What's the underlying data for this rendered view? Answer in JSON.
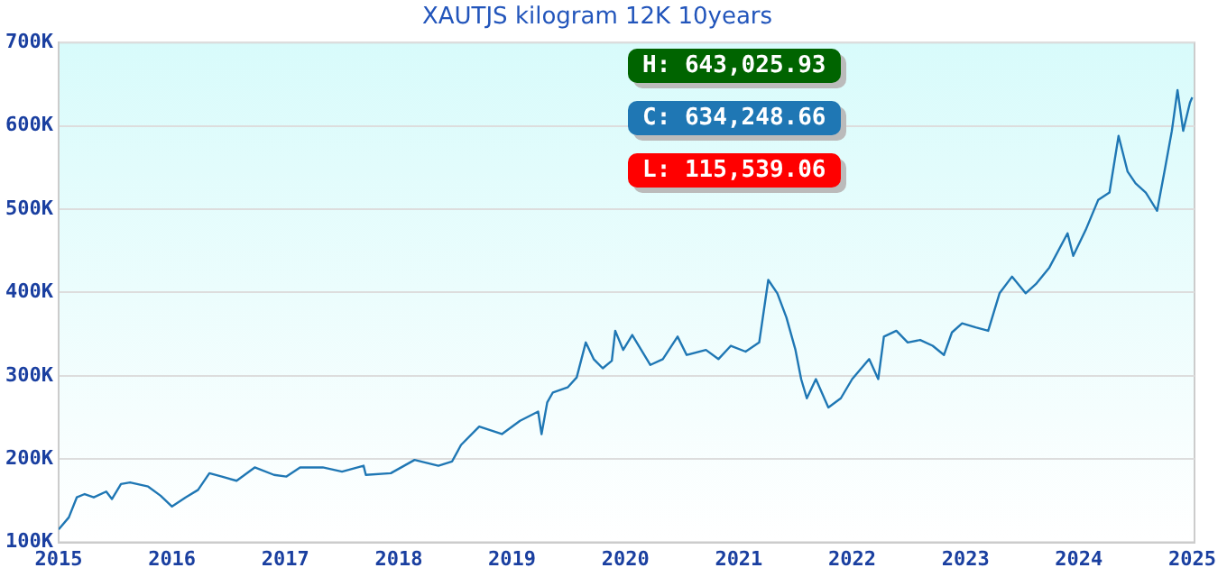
{
  "chart_data": {
    "type": "line",
    "title": "XAUTJS kilogram 12K 10years",
    "x": [
      2015.0,
      2015.09,
      2015.16,
      2015.23,
      2015.31,
      2015.42,
      2015.47,
      2015.55,
      2015.63,
      2015.79,
      2015.9,
      2016.0,
      2016.12,
      2016.23,
      2016.33,
      2016.44,
      2016.57,
      2016.73,
      2016.9,
      2017.01,
      2017.13,
      2017.33,
      2017.5,
      2017.69,
      2017.71,
      2017.93,
      2018.14,
      2018.35,
      2018.47,
      2018.55,
      2018.71,
      2018.91,
      2019.07,
      2019.23,
      2019.26,
      2019.31,
      2019.36,
      2019.49,
      2019.57,
      2019.65,
      2019.72,
      2019.8,
      2019.88,
      2019.91,
      2019.98,
      2020.06,
      2020.22,
      2020.33,
      2020.46,
      2020.54,
      2020.71,
      2020.82,
      2020.93,
      2021.06,
      2021.18,
      2021.26,
      2021.34,
      2021.42,
      2021.5,
      2021.55,
      2021.6,
      2021.68,
      2021.79,
      2021.9,
      2022.0,
      2022.15,
      2022.23,
      2022.28,
      2022.39,
      2022.49,
      2022.6,
      2022.71,
      2022.81,
      2022.88,
      2022.97,
      2023.09,
      2023.2,
      2023.3,
      2023.41,
      2023.53,
      2023.62,
      2023.74,
      2023.9,
      2023.95,
      2024.06,
      2024.17,
      2024.27,
      2024.35,
      2024.43,
      2024.5,
      2024.59,
      2024.69,
      2024.76,
      2024.82,
      2024.87,
      2024.92,
      2024.98,
      2025.0
    ],
    "series": [
      {
        "color": "#1f77b4",
        "values": [
          115539,
          130000,
          154000,
          158000,
          154000,
          161000,
          152000,
          170000,
          172000,
          167000,
          156000,
          143000,
          154000,
          163000,
          183000,
          179000,
          174000,
          190000,
          181000,
          179000,
          190000,
          190000,
          185000,
          192000,
          181000,
          183000,
          199000,
          192000,
          197000,
          217000,
          239000,
          230000,
          246000,
          257000,
          230000,
          268000,
          280000,
          286000,
          298000,
          340000,
          320000,
          309000,
          318000,
          354000,
          331000,
          349000,
          313000,
          320000,
          347000,
          325000,
          331000,
          320000,
          336000,
          329000,
          340000,
          415000,
          399000,
          370000,
          331000,
          296000,
          273000,
          296000,
          262000,
          273000,
          296000,
          320000,
          296000,
          347000,
          354000,
          340000,
          343000,
          336000,
          325000,
          352000,
          363000,
          358000,
          354000,
          399000,
          419000,
          399000,
          410000,
          430000,
          471000,
          444000,
          475000,
          511000,
          520000,
          588000,
          545000,
          531000,
          520000,
          498000,
          549000,
          594000,
          643026,
          594000,
          628000,
          634249
        ]
      }
    ],
    "xlim": [
      2015,
      2025.02
    ],
    "xticks": [
      2015,
      2016,
      2017,
      2018,
      2019,
      2020,
      2021,
      2022,
      2023,
      2024,
      2025
    ],
    "ylim": [
      100000,
      700000
    ],
    "yticks": [
      {
        "value": 100000,
        "label": "100K"
      },
      {
        "value": 200000,
        "label": "200K"
      },
      {
        "value": 300000,
        "label": "300K"
      },
      {
        "value": 400000,
        "label": "400K"
      },
      {
        "value": 500000,
        "label": "500K"
      },
      {
        "value": 600000,
        "label": "600K"
      },
      {
        "value": 700000,
        "label": "700K"
      }
    ],
    "grid": "y",
    "marker": "none",
    "line_style": "solid",
    "legend": false,
    "annotations": [
      "H: 643,025.93",
      "C: 634,248.66",
      "L: 115,539.06"
    ]
  }
}
